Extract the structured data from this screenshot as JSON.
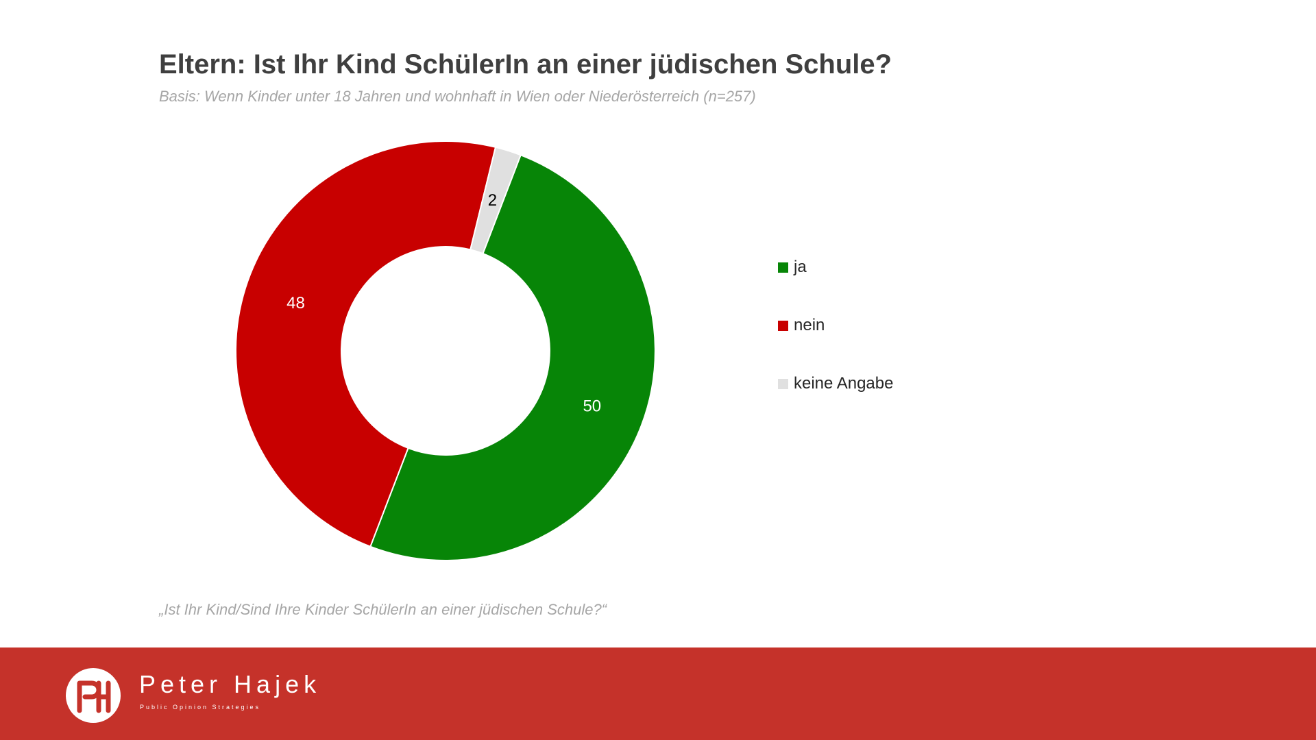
{
  "header": {
    "title": "Eltern: Ist Ihr Kind SchülerIn an einer jüdischen Schule?",
    "subtitle": "Basis: Wenn Kinder unter 18 Jahren und wohnhaft in Wien oder Niederösterreich (n=257)"
  },
  "chart_data": {
    "type": "pie",
    "variant": "donut",
    "title": "Eltern: Ist Ihr Kind SchülerIn an einer jüdischen Schule?",
    "categories": [
      "ja",
      "nein",
      "keine Angabe"
    ],
    "values": [
      50,
      48,
      2
    ],
    "labels": [
      "50",
      "48",
      "2"
    ],
    "colors": [
      "#078507",
      "#c80000",
      "#e0e0e0"
    ],
    "label_colors": [
      "#ffffff",
      "#ffffff",
      "#000000"
    ],
    "legend_position": "right"
  },
  "legend": {
    "items": [
      {
        "label": "ja",
        "color": "#078507"
      },
      {
        "label": "nein",
        "color": "#c80000"
      },
      {
        "label": "keine Angabe",
        "color": "#e0e0e0"
      }
    ]
  },
  "footnote": "„Ist Ihr Kind/Sind Ihre Kinder SchülerIn an einer jüdischen Schule?“",
  "footer": {
    "brand_name": "Peter Hajek",
    "brand_tagline": "Public Opinion Strategies",
    "background": "#c5322a"
  }
}
